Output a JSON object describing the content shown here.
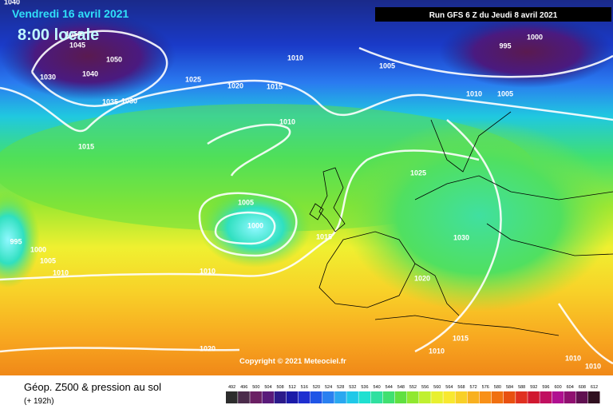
{
  "header": {
    "date": "Vendredi 16 avril 2021",
    "time": "8:00 locale",
    "run": "Run GFS 6 Z du Jeudi 8 avril 2021"
  },
  "isobar_labels": [
    "1040",
    "1050",
    "1045",
    "1050",
    "1040",
    "1030",
    "1035",
    "1030",
    "1025",
    "1020",
    "1015",
    "1010",
    "1010",
    "1015",
    "1005",
    "995",
    "1000",
    "1010",
    "1005",
    "1025",
    "1005",
    "1000",
    "1015",
    "1030",
    "1020",
    "1010",
    "1010",
    "1005",
    "1000",
    "995",
    "1020",
    "1015",
    "1010",
    "1010",
    "1010"
  ],
  "copyright": "Copyright © 2021 Meteociel.fr",
  "legend": {
    "title": "Géop. Z500 & pression au sol",
    "subtitle": "(+ 192h)",
    "scale": [
      492,
      496,
      500,
      504,
      508,
      512,
      516,
      520,
      524,
      528,
      532,
      536,
      540,
      544,
      548,
      552,
      556,
      560,
      564,
      568,
      572,
      576,
      580,
      584,
      588,
      592,
      596,
      600,
      604,
      608,
      612
    ],
    "colors": [
      "#2d2d2d",
      "#4b2b4b",
      "#6a1f63",
      "#5a1a7a",
      "#2b1a8a",
      "#1a1aa8",
      "#1f2fd0",
      "#1f55e6",
      "#2a80f0",
      "#2aa8f0",
      "#20c8e8",
      "#20e0d0",
      "#30e0a0",
      "#40e070",
      "#60e040",
      "#90e830",
      "#c0f030",
      "#e8f030",
      "#f8e830",
      "#f8d028",
      "#f8b020",
      "#f89018",
      "#f07010",
      "#e85010",
      "#e03020",
      "#d01830",
      "#c01060",
      "#b01090",
      "#901070",
      "#601050",
      "#301020"
    ]
  }
}
